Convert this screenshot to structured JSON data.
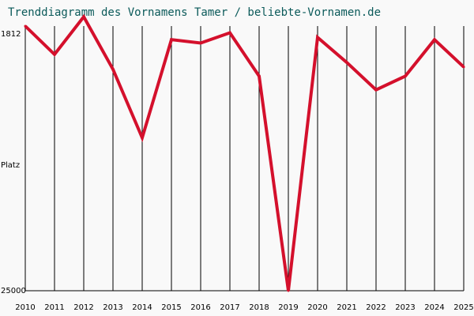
{
  "chart_data": {
    "type": "line",
    "title": "Trenddiagramm des Vornamens Tamer / beliebte-Vornamen.de",
    "ylabel": "Platz",
    "y_axis": "inverted (rank)",
    "y_top_label": "1812",
    "y_bottom_label": "25000",
    "ylim": [
      1812,
      25000
    ],
    "categories": [
      "2010",
      "2011",
      "2012",
      "2013",
      "2014",
      "2015",
      "2016",
      "2017",
      "2018",
      "2019",
      "2020",
      "2021",
      "2022",
      "2023",
      "2024",
      "2025"
    ],
    "series": [
      {
        "values": [
          1812,
          4300,
          1000,
          5600,
          11600,
          3000,
          3300,
          2400,
          6200,
          25000,
          2800,
          5000,
          7400,
          6200,
          3000,
          5400
        ],
        "color": "#d4102c"
      }
    ],
    "grid": "vertical",
    "legend": "none"
  }
}
